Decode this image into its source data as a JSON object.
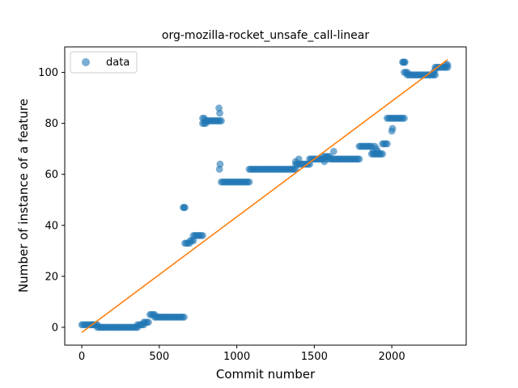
{
  "chart_data": {
    "type": "scatter",
    "title": "org-mozilla-rocket_unsafe_call-linear",
    "xlabel": "Commit number",
    "ylabel": "Number of instance of a feature",
    "xlim": [
      -110,
      2480
    ],
    "ylim": [
      -7,
      110
    ],
    "xticks": [
      0,
      500,
      1000,
      1500,
      2000
    ],
    "yticks": [
      0,
      20,
      40,
      60,
      80,
      100
    ],
    "grid": false,
    "legend": {
      "location": "upper-left",
      "entries": [
        "data"
      ]
    },
    "colors": {
      "data": "#1f77b4",
      "fit": "#ff7f0e"
    },
    "series": [
      {
        "name": "data",
        "kind": "points",
        "segments": [
          {
            "x0": 0,
            "x1": 70,
            "y": 1
          },
          {
            "x0": 70,
            "x1": 100,
            "y": 1
          },
          {
            "x0": 100,
            "x1": 360,
            "y": 0
          },
          {
            "x0": 360,
            "x1": 400,
            "y": 1
          },
          {
            "x0": 400,
            "x1": 430,
            "y": 2
          },
          {
            "x0": 440,
            "x1": 470,
            "y": 5
          },
          {
            "x0": 470,
            "x1": 665,
            "y": 4
          },
          {
            "x0": 665,
            "x1": 700,
            "y": 33
          },
          {
            "x0": 700,
            "x1": 720,
            "y": 34
          },
          {
            "x0": 720,
            "x1": 780,
            "y": 36
          },
          {
            "x0": 780,
            "x1": 800,
            "y": 80
          },
          {
            "x0": 800,
            "x1": 900,
            "y": 81
          },
          {
            "x0": 900,
            "x1": 1080,
            "y": 57
          },
          {
            "x0": 1080,
            "x1": 1380,
            "y": 62
          },
          {
            "x0": 1380,
            "x1": 1470,
            "y": 64
          },
          {
            "x0": 1470,
            "x1": 1560,
            "y": 66
          },
          {
            "x0": 1560,
            "x1": 1600,
            "y": 67
          },
          {
            "x0": 1600,
            "x1": 1790,
            "y": 66
          },
          {
            "x0": 1790,
            "x1": 1870,
            "y": 71
          },
          {
            "x0": 1870,
            "x1": 1940,
            "y": 68
          },
          {
            "x0": 1940,
            "x1": 1970,
            "y": 72
          },
          {
            "x0": 1970,
            "x1": 2080,
            "y": 82
          },
          {
            "x0": 2080,
            "x1": 2100,
            "y": 100
          },
          {
            "x0": 2100,
            "x1": 2280,
            "y": 99
          },
          {
            "x0": 2280,
            "x1": 2360,
            "y": 102
          }
        ],
        "extra_points": [
          [
            655,
            47
          ],
          [
            660,
            47
          ],
          [
            665,
            47
          ],
          [
            885,
            86
          ],
          [
            890,
            84
          ],
          [
            888,
            62
          ],
          [
            892,
            64
          ],
          [
            780,
            82
          ],
          [
            790,
            82
          ],
          [
            1380,
            65
          ],
          [
            1400,
            66
          ],
          [
            1565,
            65
          ],
          [
            1580,
            66
          ],
          [
            1625,
            69
          ],
          [
            1880,
            69
          ],
          [
            1890,
            71
          ],
          [
            1900,
            70
          ],
          [
            1910,
            69
          ],
          [
            2000,
            77
          ],
          [
            2005,
            78
          ],
          [
            2070,
            104
          ],
          [
            2075,
            104
          ],
          [
            2080,
            104
          ],
          [
            2085,
            104
          ],
          [
            2270,
            100
          ],
          [
            2280,
            101
          ],
          [
            2350,
            103
          ],
          [
            2360,
            103
          ]
        ]
      },
      {
        "name": "",
        "kind": "line",
        "x": [
          0,
          2360
        ],
        "y": [
          -2,
          105
        ]
      }
    ]
  }
}
